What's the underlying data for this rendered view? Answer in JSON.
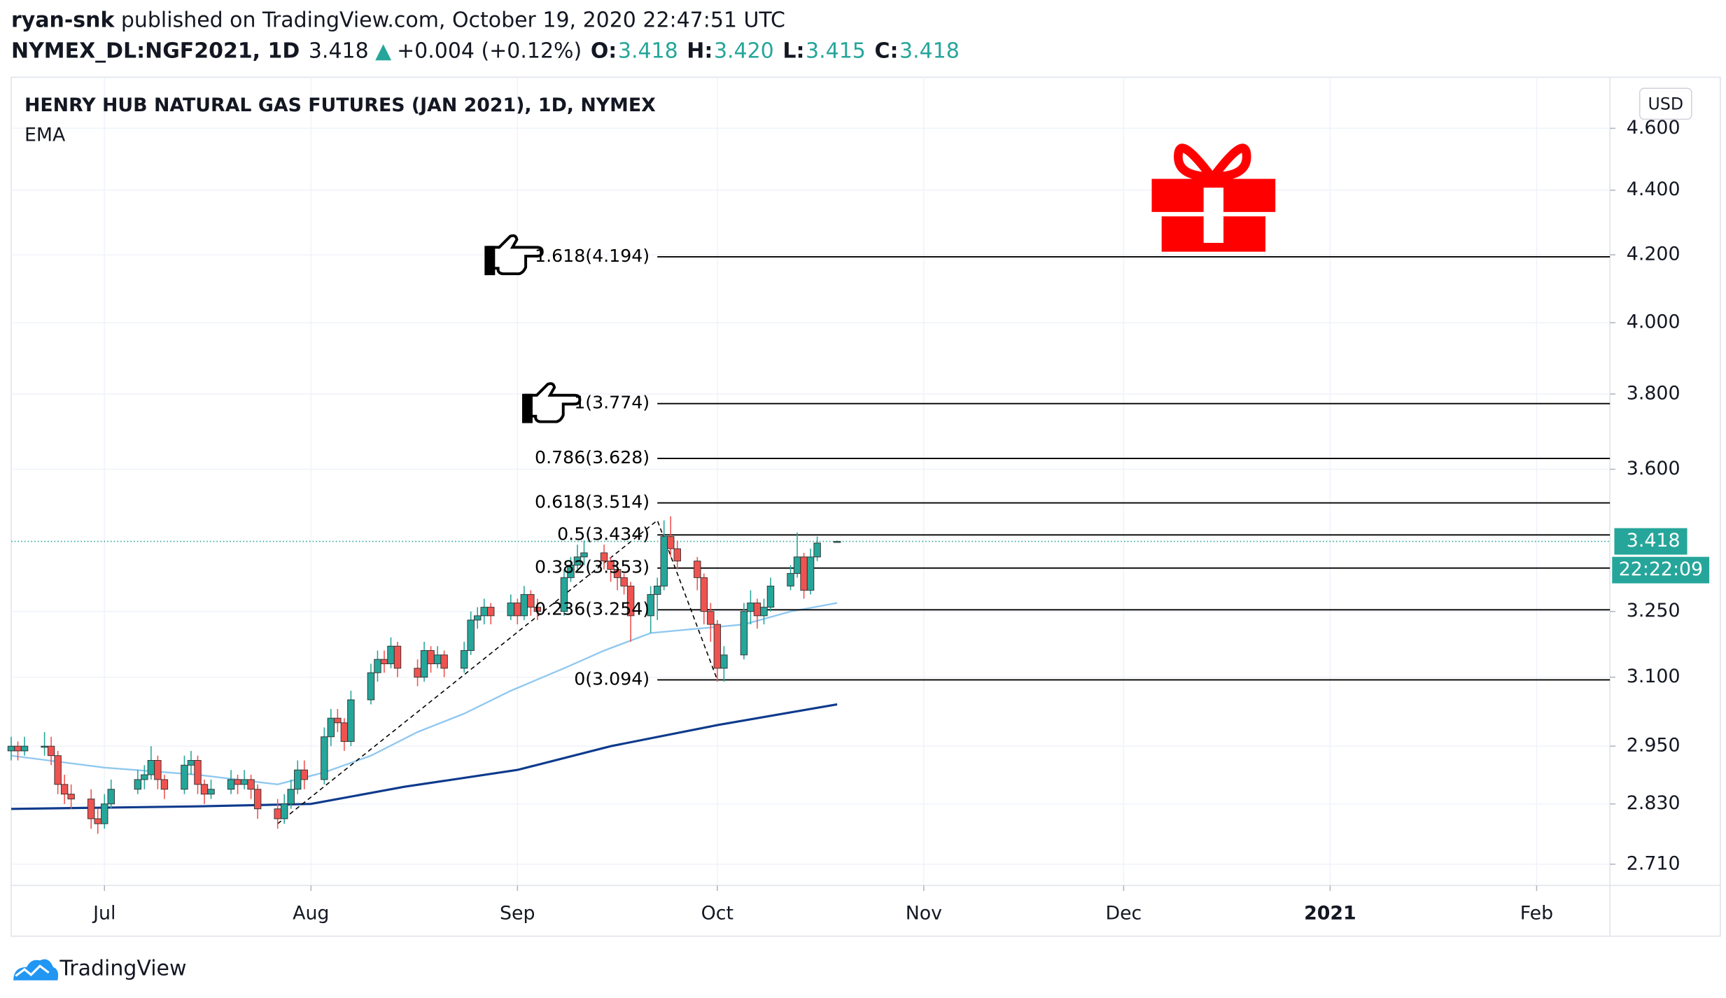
{
  "header": {
    "author": "ryan-snk",
    "published": "published on TradingView.com, October 19, 2020 22:47:51 UTC",
    "symbol": "NYMEX_DL:NGF2021, 1D",
    "last": "3.418",
    "arrow": "▲",
    "change": "+0.004 (+0.12%)",
    "o_label": "O:",
    "o": "3.418",
    "h_label": "H:",
    "h": "3.420",
    "l_label": "L:",
    "l": "3.415",
    "c_label": "C:",
    "c": "3.418"
  },
  "footer": {
    "brand": "TradingView"
  },
  "chart_data": {
    "type": "candlestick",
    "title": "HENRY HUB NATURAL GAS FUTURES (JAN 2021), 1D, NYMEX",
    "indicator": "EMA",
    "currency": "USD",
    "log_scale": true,
    "grid": true,
    "up_color": "#26a69a",
    "down_color": "#ef5350",
    "xlim": [
      "2020-06-17",
      "2021-02-12"
    ],
    "xticks": [
      {
        "value": "2020-07-01",
        "label": "Jul"
      },
      {
        "value": "2020-08-01",
        "label": "Aug"
      },
      {
        "value": "2020-09-01",
        "label": "Sep"
      },
      {
        "value": "2020-10-01",
        "label": "Oct"
      },
      {
        "value": "2020-11-01",
        "label": "Nov"
      },
      {
        "value": "2020-12-01",
        "label": "Dec"
      },
      {
        "value": "2021-01-01",
        "label": "2021"
      },
      {
        "value": "2021-02-01",
        "label": "Feb"
      }
    ],
    "ylim": [
      2.669,
      4.772
    ],
    "yticks": [
      {
        "value": 2.71,
        "label": "2.710"
      },
      {
        "value": 2.83,
        "label": "2.830"
      },
      {
        "value": 2.95,
        "label": "2.950"
      },
      {
        "value": 3.1,
        "label": "3.100"
      },
      {
        "value": 3.25,
        "label": "3.250"
      },
      {
        "value": 3.6,
        "label": "3.600"
      },
      {
        "value": 3.8,
        "label": "3.800"
      },
      {
        "value": 4.0,
        "label": "4.000"
      },
      {
        "value": 4.2,
        "label": "4.200"
      },
      {
        "value": 4.4,
        "label": "4.400"
      },
      {
        "value": 4.6,
        "label": "4.600"
      }
    ],
    "x": [
      "2020-06-17",
      "2020-06-18",
      "2020-06-19",
      "2020-06-22",
      "2020-06-23",
      "2020-06-24",
      "2020-06-25",
      "2020-06-26",
      "2020-06-29",
      "2020-06-30",
      "2020-07-01",
      "2020-07-02",
      "2020-07-06",
      "2020-07-07",
      "2020-07-08",
      "2020-07-09",
      "2020-07-10",
      "2020-07-13",
      "2020-07-14",
      "2020-07-15",
      "2020-07-16",
      "2020-07-17",
      "2020-07-20",
      "2020-07-21",
      "2020-07-22",
      "2020-07-23",
      "2020-07-24",
      "2020-07-27",
      "2020-07-28",
      "2020-07-29",
      "2020-07-30",
      "2020-07-31",
      "2020-08-03",
      "2020-08-04",
      "2020-08-05",
      "2020-08-06",
      "2020-08-07",
      "2020-08-10",
      "2020-08-11",
      "2020-08-12",
      "2020-08-13",
      "2020-08-14",
      "2020-08-17",
      "2020-08-18",
      "2020-08-19",
      "2020-08-20",
      "2020-08-21",
      "2020-08-24",
      "2020-08-25",
      "2020-08-26",
      "2020-08-27",
      "2020-08-28",
      "2020-08-31",
      "2020-09-01",
      "2020-09-02",
      "2020-09-03",
      "2020-09-04",
      "2020-09-08",
      "2020-09-09",
      "2020-09-10",
      "2020-09-11",
      "2020-09-14",
      "2020-09-15",
      "2020-09-16",
      "2020-09-17",
      "2020-09-18",
      "2020-09-21",
      "2020-09-22",
      "2020-09-23",
      "2020-09-24",
      "2020-09-25",
      "2020-09-28",
      "2020-09-29",
      "2020-09-30",
      "2020-10-01",
      "2020-10-02",
      "2020-10-05",
      "2020-10-06",
      "2020-10-07",
      "2020-10-08",
      "2020-10-09",
      "2020-10-12",
      "2020-10-13",
      "2020-10-14",
      "2020-10-15",
      "2020-10-16",
      "2020-10-19"
    ],
    "ohlc": [
      [
        2.94,
        2.97,
        2.92,
        2.95
      ],
      [
        2.95,
        2.96,
        2.92,
        2.94
      ],
      [
        2.94,
        2.97,
        2.93,
        2.95
      ],
      [
        2.95,
        2.98,
        2.93,
        2.95
      ],
      [
        2.95,
        2.97,
        2.91,
        2.93
      ],
      [
        2.93,
        2.94,
        2.85,
        2.87
      ],
      [
        2.87,
        2.89,
        2.83,
        2.85
      ],
      [
        2.85,
        2.87,
        2.82,
        2.84
      ],
      [
        2.84,
        2.86,
        2.78,
        2.8
      ],
      [
        2.8,
        2.82,
        2.77,
        2.79
      ],
      [
        2.79,
        2.85,
        2.78,
        2.83
      ],
      [
        2.83,
        2.88,
        2.82,
        2.86
      ],
      [
        2.86,
        2.9,
        2.85,
        2.88
      ],
      [
        2.88,
        2.91,
        2.86,
        2.89
      ],
      [
        2.89,
        2.95,
        2.88,
        2.92
      ],
      [
        2.92,
        2.93,
        2.86,
        2.88
      ],
      [
        2.88,
        2.89,
        2.84,
        2.86
      ],
      [
        2.86,
        2.93,
        2.85,
        2.91
      ],
      [
        2.91,
        2.94,
        2.89,
        2.92
      ],
      [
        2.92,
        2.93,
        2.85,
        2.87
      ],
      [
        2.87,
        2.88,
        2.83,
        2.85
      ],
      [
        2.85,
        2.88,
        2.84,
        2.86
      ],
      [
        2.86,
        2.9,
        2.85,
        2.88
      ],
      [
        2.88,
        2.89,
        2.85,
        2.87
      ],
      [
        2.87,
        2.9,
        2.86,
        2.88
      ],
      [
        2.88,
        2.89,
        2.84,
        2.86
      ],
      [
        2.86,
        2.87,
        2.8,
        2.82
      ],
      [
        2.82,
        2.84,
        2.78,
        2.8
      ],
      [
        2.8,
        2.85,
        2.79,
        2.83
      ],
      [
        2.83,
        2.88,
        2.82,
        2.86
      ],
      [
        2.86,
        2.92,
        2.85,
        2.9
      ],
      [
        2.9,
        2.92,
        2.86,
        2.88
      ],
      [
        2.88,
        2.99,
        2.87,
        2.97
      ],
      [
        2.97,
        3.03,
        2.95,
        3.01
      ],
      [
        3.01,
        3.03,
        2.98,
        3.0
      ],
      [
        3.0,
        3.01,
        2.94,
        2.96
      ],
      [
        2.96,
        3.07,
        2.95,
        3.05
      ],
      [
        3.05,
        3.13,
        3.04,
        3.11
      ],
      [
        3.11,
        3.16,
        3.09,
        3.14
      ],
      [
        3.14,
        3.16,
        3.11,
        3.13
      ],
      [
        3.13,
        3.19,
        3.12,
        3.17
      ],
      [
        3.17,
        3.18,
        3.1,
        3.12
      ],
      [
        3.12,
        3.14,
        3.08,
        3.1
      ],
      [
        3.1,
        3.18,
        3.09,
        3.16
      ],
      [
        3.16,
        3.17,
        3.11,
        3.13
      ],
      [
        3.13,
        3.17,
        3.12,
        3.15
      ],
      [
        3.15,
        3.16,
        3.1,
        3.12
      ],
      [
        3.12,
        3.18,
        3.11,
        3.16
      ],
      [
        3.16,
        3.25,
        3.15,
        3.23
      ],
      [
        3.23,
        3.26,
        3.21,
        3.24
      ],
      [
        3.24,
        3.28,
        3.22,
        3.26
      ],
      [
        3.26,
        3.27,
        3.22,
        3.24
      ],
      [
        3.24,
        3.29,
        3.23,
        3.27
      ],
      [
        3.27,
        3.28,
        3.22,
        3.24
      ],
      [
        3.24,
        3.31,
        3.23,
        3.29
      ],
      [
        3.29,
        3.3,
        3.24,
        3.26
      ],
      [
        3.26,
        3.28,
        3.23,
        3.25
      ],
      [
        3.25,
        3.35,
        3.24,
        3.33
      ],
      [
        3.33,
        3.38,
        3.32,
        3.36
      ],
      [
        3.36,
        3.41,
        3.35,
        3.38
      ],
      [
        3.38,
        3.42,
        3.36,
        3.39
      ],
      [
        3.39,
        3.41,
        3.35,
        3.37
      ],
      [
        3.37,
        3.38,
        3.32,
        3.35
      ],
      [
        3.35,
        3.36,
        3.3,
        3.33
      ],
      [
        3.33,
        3.34,
        3.29,
        3.31
      ],
      [
        3.31,
        3.32,
        3.18,
        3.24
      ],
      [
        3.24,
        3.31,
        3.2,
        3.29
      ],
      [
        3.29,
        3.33,
        3.23,
        3.31
      ],
      [
        3.31,
        3.47,
        3.3,
        3.43
      ],
      [
        3.43,
        3.48,
        3.38,
        3.4
      ],
      [
        3.4,
        3.42,
        3.35,
        3.37
      ],
      [
        3.37,
        3.38,
        3.3,
        3.33
      ],
      [
        3.33,
        3.34,
        3.22,
        3.25
      ],
      [
        3.25,
        3.27,
        3.18,
        3.22
      ],
      [
        3.22,
        3.23,
        3.09,
        3.12
      ],
      [
        3.12,
        3.17,
        3.09,
        3.15
      ],
      [
        3.15,
        3.27,
        3.14,
        3.25
      ],
      [
        3.25,
        3.3,
        3.22,
        3.27
      ],
      [
        3.27,
        3.28,
        3.21,
        3.24
      ],
      [
        3.24,
        3.28,
        3.22,
        3.26
      ],
      [
        3.26,
        3.33,
        3.25,
        3.31
      ],
      [
        3.31,
        3.36,
        3.3,
        3.34
      ],
      [
        3.34,
        3.44,
        3.33,
        3.38
      ],
      [
        3.38,
        3.39,
        3.28,
        3.3
      ],
      [
        3.3,
        3.4,
        3.29,
        3.38
      ],
      [
        3.38,
        3.43,
        3.37,
        3.414
      ],
      [
        3.418,
        3.42,
        3.415,
        3.418
      ]
    ],
    "ema": [
      {
        "color": "#90c8f0",
        "x": [
          "2020-06-17",
          "2020-07-01",
          "2020-07-15",
          "2020-07-27",
          "2020-08-03",
          "2020-08-10",
          "2020-08-17",
          "2020-08-24",
          "2020-08-31",
          "2020-09-08",
          "2020-09-14",
          "2020-09-21",
          "2020-09-28",
          "2020-10-05",
          "2020-10-12",
          "2020-10-19"
        ],
        "values": [
          2.93,
          2.905,
          2.89,
          2.87,
          2.895,
          2.93,
          2.98,
          3.02,
          3.07,
          3.12,
          3.16,
          3.2,
          3.21,
          3.22,
          3.25,
          3.27
        ]
      },
      {
        "color": "#0d3a8c",
        "x": [
          "2020-06-17",
          "2020-07-15",
          "2020-08-01",
          "2020-08-15",
          "2020-09-01",
          "2020-09-15",
          "2020-10-01",
          "2020-10-19"
        ],
        "values": [
          2.82,
          2.825,
          2.83,
          2.865,
          2.9,
          2.95,
          2.995,
          3.04
        ]
      }
    ],
    "trend_points": [
      {
        "x": "2020-07-27",
        "value": 2.79
      },
      {
        "x": "2020-09-22",
        "value": 3.47
      },
      {
        "x": "2020-10-01",
        "value": 3.094
      }
    ],
    "fib_levels": [
      {
        "label": "1.618(4.194)",
        "value": 4.194
      },
      {
        "label": "1(3.774)",
        "value": 3.774
      },
      {
        "label": "0.786(3.628)",
        "value": 3.628
      },
      {
        "label": "0.618(3.514)",
        "value": 3.514
      },
      {
        "label": "0.5(3.434)",
        "value": 3.434
      },
      {
        "label": "0.382(3.353)",
        "value": 3.353
      },
      {
        "label": "0.236(3.254)",
        "value": 3.254
      },
      {
        "label": "0(3.094)",
        "value": 3.094
      }
    ],
    "last_price": 3.418,
    "countdown": "22:22:09"
  }
}
